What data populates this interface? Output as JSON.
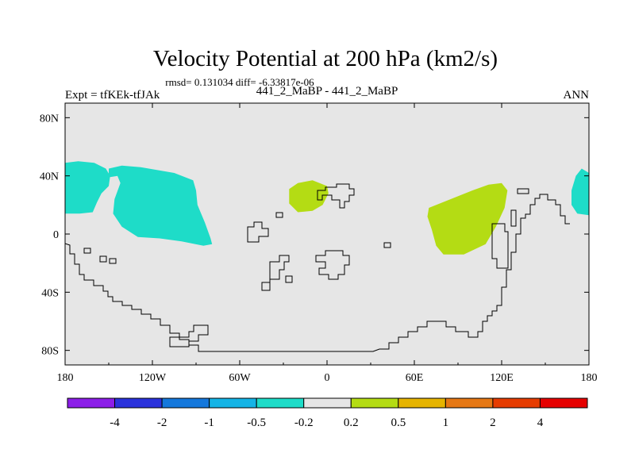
{
  "chart_data": {
    "type": "heatmap",
    "title": "Velocity Potential at 200 hPa (km2/s)",
    "subtitle": "rmsd= 0.131034 diff= -6.33817e-06",
    "left_label": "Expt = tfKEk-tfJAk",
    "center_label": "441_2_MaBP - 441_2_MaBP",
    "right_label": "ANN",
    "xlim": [
      -180,
      180
    ],
    "ylim": [
      -90,
      90
    ],
    "x_ticks": [
      {
        "value": -180,
        "label": "180"
      },
      {
        "value": -120,
        "label": "120W"
      },
      {
        "value": -60,
        "label": "60W"
      },
      {
        "value": 0,
        "label": "0"
      },
      {
        "value": 60,
        "label": "60E"
      },
      {
        "value": 120,
        "label": "120E"
      },
      {
        "value": 180,
        "label": "180"
      }
    ],
    "y_ticks": [
      {
        "value": 80,
        "label": "80N"
      },
      {
        "value": 40,
        "label": "40N"
      },
      {
        "value": 0,
        "label": "0"
      },
      {
        "value": -40,
        "label": "40S"
      },
      {
        "value": -80,
        "label": "80S"
      }
    ],
    "background_color": "#e6e6e6",
    "colorbar": {
      "colors": [
        "#8c1ee8",
        "#2a32dc",
        "#1478dc",
        "#14b4e6",
        "#1edcc8",
        "#e6e6e6",
        "#b4dc14",
        "#e6b400",
        "#e67814",
        "#e63c00",
        "#e60000"
      ],
      "labels": [
        "-4",
        "-2",
        "-1",
        "-0.5",
        "-0.2",
        "0.2",
        "0.5",
        "1",
        "2",
        "4"
      ]
    },
    "regions": [
      {
        "name": "negative -0.5 to -0.2 (west Pacific, 180-150W)",
        "level": "-0.5 to -0.2",
        "color": "#1edcc8",
        "points": [
          [
            -180,
            49
          ],
          [
            -171,
            50
          ],
          [
            -160,
            49
          ],
          [
            -152,
            45
          ],
          [
            -149,
            40
          ],
          [
            -150,
            33
          ],
          [
            -155,
            28
          ],
          [
            -158,
            22
          ],
          [
            -161,
            15
          ],
          [
            -170,
            14
          ],
          [
            -180,
            14
          ]
        ]
      },
      {
        "name": "negative -0.5 to -0.2 (eastern Pacific)",
        "level": "-0.5 to -0.2",
        "color": "#1edcc8",
        "points": [
          [
            -150,
            45
          ],
          [
            -141,
            47
          ],
          [
            -128,
            46
          ],
          [
            -105,
            42
          ],
          [
            -92,
            37
          ],
          [
            -90,
            30
          ],
          [
            -89,
            20
          ],
          [
            -84,
            8
          ],
          [
            -80,
            -3
          ],
          [
            -79,
            -7
          ],
          [
            -85,
            -8
          ],
          [
            -100,
            -5
          ],
          [
            -115,
            -3
          ],
          [
            -130,
            -2
          ],
          [
            -141,
            5
          ],
          [
            -147,
            14
          ],
          [
            -146,
            24
          ],
          [
            -142,
            35
          ],
          [
            -144,
            40
          ],
          [
            -150,
            39
          ]
        ]
      },
      {
        "name": "negative -0.5 to -0.2 (near 180)",
        "level": "-0.5 to -0.2",
        "color": "#1edcc8",
        "points": [
          [
            180,
            42
          ],
          [
            175,
            45
          ],
          [
            171,
            40
          ],
          [
            168,
            30
          ],
          [
            168,
            20
          ],
          [
            172,
            14
          ],
          [
            180,
            13
          ]
        ]
      },
      {
        "name": "positive 0.2 to 0.5 (Africa)",
        "level": "0.2 to 0.5",
        "color": "#b4dc14",
        "points": [
          [
            -26,
            31
          ],
          [
            -20,
            35
          ],
          [
            -10,
            37
          ],
          [
            0,
            33
          ],
          [
            1,
            28
          ],
          [
            -3,
            20
          ],
          [
            -10,
            16
          ],
          [
            -20,
            15
          ],
          [
            -26,
            21
          ]
        ]
      },
      {
        "name": "positive 0.2 to 0.5 (Indian Ocean)",
        "level": "0.2 to 0.5",
        "color": "#b4dc14",
        "points": [
          [
            70,
            18
          ],
          [
            85,
            24
          ],
          [
            100,
            30
          ],
          [
            111,
            34
          ],
          [
            120,
            35
          ],
          [
            124,
            30
          ],
          [
            122,
            18
          ],
          [
            116,
            5
          ],
          [
            109,
            -7
          ],
          [
            94,
            -14
          ],
          [
            80,
            -14
          ],
          [
            75,
            -8
          ],
          [
            72,
            3
          ],
          [
            69,
            12
          ]
        ]
      }
    ],
    "coastline_note": "black land outline"
  }
}
